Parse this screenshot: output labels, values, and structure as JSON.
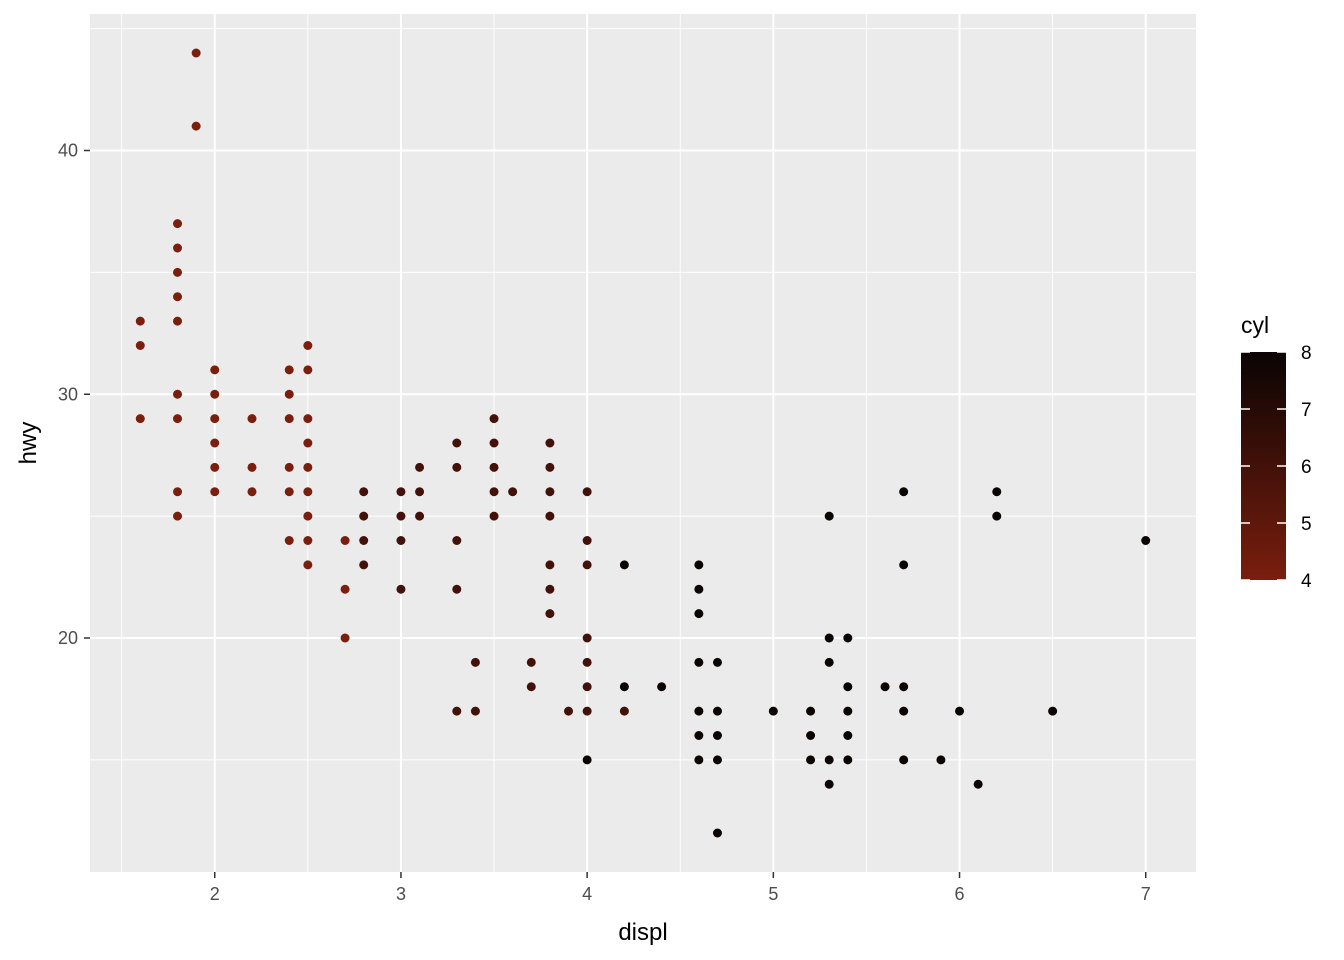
{
  "chart_data": {
    "type": "scatter",
    "title": "",
    "xlabel": "displ",
    "ylabel": "hwy",
    "xlim": [
      1.33,
      7.27
    ],
    "ylim": [
      10.4,
      45.6
    ],
    "x_ticks": [
      2,
      3,
      4,
      5,
      6,
      7
    ],
    "y_ticks": [
      20,
      30,
      40
    ],
    "grid": true,
    "legend": {
      "title": "cyl",
      "type": "colorbar",
      "position": "right",
      "min": 4,
      "max": 8,
      "ticks": [
        4,
        5,
        6,
        7,
        8
      ],
      "low_color": "#7a1e0e",
      "high_color": "#0a0403"
    },
    "colors": {
      "panel_bg": "#ebebeb",
      "grid": "#ffffff"
    },
    "points": [
      {
        "x": 1.6,
        "y": 33,
        "cyl": 4
      },
      {
        "x": 1.6,
        "y": 32,
        "cyl": 4
      },
      {
        "x": 1.6,
        "y": 29,
        "cyl": 4
      },
      {
        "x": 1.8,
        "y": 37,
        "cyl": 4
      },
      {
        "x": 1.8,
        "y": 36,
        "cyl": 4
      },
      {
        "x": 1.8,
        "y": 35,
        "cyl": 4
      },
      {
        "x": 1.8,
        "y": 34,
        "cyl": 4
      },
      {
        "x": 1.8,
        "y": 33,
        "cyl": 4
      },
      {
        "x": 1.8,
        "y": 30,
        "cyl": 4
      },
      {
        "x": 1.8,
        "y": 29,
        "cyl": 4
      },
      {
        "x": 1.8,
        "y": 26,
        "cyl": 4
      },
      {
        "x": 1.8,
        "y": 25,
        "cyl": 4
      },
      {
        "x": 1.9,
        "y": 44,
        "cyl": 4
      },
      {
        "x": 1.9,
        "y": 41,
        "cyl": 4
      },
      {
        "x": 2.0,
        "y": 31,
        "cyl": 4
      },
      {
        "x": 2.0,
        "y": 30,
        "cyl": 4
      },
      {
        "x": 2.0,
        "y": 29,
        "cyl": 4
      },
      {
        "x": 2.0,
        "y": 28,
        "cyl": 4
      },
      {
        "x": 2.0,
        "y": 27,
        "cyl": 4
      },
      {
        "x": 2.0,
        "y": 26,
        "cyl": 4
      },
      {
        "x": 2.2,
        "y": 29,
        "cyl": 4
      },
      {
        "x": 2.2,
        "y": 27,
        "cyl": 4
      },
      {
        "x": 2.2,
        "y": 26,
        "cyl": 4
      },
      {
        "x": 2.4,
        "y": 31,
        "cyl": 4
      },
      {
        "x": 2.4,
        "y": 30,
        "cyl": 4
      },
      {
        "x": 2.4,
        "y": 29,
        "cyl": 4
      },
      {
        "x": 2.4,
        "y": 27,
        "cyl": 4
      },
      {
        "x": 2.4,
        "y": 26,
        "cyl": 4
      },
      {
        "x": 2.4,
        "y": 24,
        "cyl": 4
      },
      {
        "x": 2.5,
        "y": 32,
        "cyl": 4
      },
      {
        "x": 2.5,
        "y": 31,
        "cyl": 4
      },
      {
        "x": 2.5,
        "y": 29,
        "cyl": 4
      },
      {
        "x": 2.5,
        "y": 28,
        "cyl": 4
      },
      {
        "x": 2.5,
        "y": 27,
        "cyl": 4
      },
      {
        "x": 2.5,
        "y": 26,
        "cyl": 4
      },
      {
        "x": 2.5,
        "y": 25,
        "cyl": 4
      },
      {
        "x": 2.5,
        "y": 24,
        "cyl": 4
      },
      {
        "x": 2.5,
        "y": 23,
        "cyl": 4
      },
      {
        "x": 2.7,
        "y": 24,
        "cyl": 4
      },
      {
        "x": 2.7,
        "y": 22,
        "cyl": 4
      },
      {
        "x": 2.7,
        "y": 20,
        "cyl": 4
      },
      {
        "x": 2.8,
        "y": 26,
        "cyl": 6
      },
      {
        "x": 2.8,
        "y": 25,
        "cyl": 6
      },
      {
        "x": 2.8,
        "y": 24,
        "cyl": 6
      },
      {
        "x": 2.8,
        "y": 23,
        "cyl": 6
      },
      {
        "x": 3.0,
        "y": 26,
        "cyl": 6
      },
      {
        "x": 3.0,
        "y": 25,
        "cyl": 6
      },
      {
        "x": 3.0,
        "y": 24,
        "cyl": 6
      },
      {
        "x": 3.0,
        "y": 22,
        "cyl": 6
      },
      {
        "x": 3.1,
        "y": 27,
        "cyl": 6
      },
      {
        "x": 3.1,
        "y": 26,
        "cyl": 6
      },
      {
        "x": 3.1,
        "y": 25,
        "cyl": 6
      },
      {
        "x": 3.3,
        "y": 28,
        "cyl": 6
      },
      {
        "x": 3.3,
        "y": 27,
        "cyl": 6
      },
      {
        "x": 3.3,
        "y": 24,
        "cyl": 6
      },
      {
        "x": 3.3,
        "y": 22,
        "cyl": 6
      },
      {
        "x": 3.3,
        "y": 17,
        "cyl": 6
      },
      {
        "x": 3.4,
        "y": 19,
        "cyl": 6
      },
      {
        "x": 3.4,
        "y": 17,
        "cyl": 6
      },
      {
        "x": 3.5,
        "y": 29,
        "cyl": 6
      },
      {
        "x": 3.5,
        "y": 28,
        "cyl": 6
      },
      {
        "x": 3.5,
        "y": 27,
        "cyl": 6
      },
      {
        "x": 3.5,
        "y": 26,
        "cyl": 6
      },
      {
        "x": 3.5,
        "y": 25,
        "cyl": 6
      },
      {
        "x": 3.6,
        "y": 26,
        "cyl": 6
      },
      {
        "x": 3.7,
        "y": 19,
        "cyl": 6
      },
      {
        "x": 3.7,
        "y": 18,
        "cyl": 6
      },
      {
        "x": 3.8,
        "y": 28,
        "cyl": 6
      },
      {
        "x": 3.8,
        "y": 27,
        "cyl": 6
      },
      {
        "x": 3.8,
        "y": 26,
        "cyl": 6
      },
      {
        "x": 3.8,
        "y": 25,
        "cyl": 6
      },
      {
        "x": 3.8,
        "y": 23,
        "cyl": 6
      },
      {
        "x": 3.8,
        "y": 22,
        "cyl": 6
      },
      {
        "x": 3.8,
        "y": 21,
        "cyl": 6
      },
      {
        "x": 3.9,
        "y": 17,
        "cyl": 6
      },
      {
        "x": 4.0,
        "y": 26,
        "cyl": 6
      },
      {
        "x": 4.0,
        "y": 24,
        "cyl": 6
      },
      {
        "x": 4.0,
        "y": 23,
        "cyl": 6
      },
      {
        "x": 4.0,
        "y": 20,
        "cyl": 6
      },
      {
        "x": 4.0,
        "y": 19,
        "cyl": 6
      },
      {
        "x": 4.0,
        "y": 18,
        "cyl": 6
      },
      {
        "x": 4.0,
        "y": 17,
        "cyl": 6
      },
      {
        "x": 4.0,
        "y": 15,
        "cyl": 8
      },
      {
        "x": 4.2,
        "y": 23,
        "cyl": 8
      },
      {
        "x": 4.2,
        "y": 18,
        "cyl": 8
      },
      {
        "x": 4.2,
        "y": 17,
        "cyl": 6
      },
      {
        "x": 4.4,
        "y": 18,
        "cyl": 8
      },
      {
        "x": 4.6,
        "y": 23,
        "cyl": 8
      },
      {
        "x": 4.6,
        "y": 22,
        "cyl": 8
      },
      {
        "x": 4.6,
        "y": 21,
        "cyl": 8
      },
      {
        "x": 4.6,
        "y": 19,
        "cyl": 8
      },
      {
        "x": 4.6,
        "y": 17,
        "cyl": 8
      },
      {
        "x": 4.6,
        "y": 16,
        "cyl": 8
      },
      {
        "x": 4.6,
        "y": 15,
        "cyl": 8
      },
      {
        "x": 4.7,
        "y": 19,
        "cyl": 8
      },
      {
        "x": 4.7,
        "y": 17,
        "cyl": 8
      },
      {
        "x": 4.7,
        "y": 16,
        "cyl": 8
      },
      {
        "x": 4.7,
        "y": 15,
        "cyl": 8
      },
      {
        "x": 4.7,
        "y": 12,
        "cyl": 8
      },
      {
        "x": 5.0,
        "y": 17,
        "cyl": 8
      },
      {
        "x": 5.2,
        "y": 17,
        "cyl": 8
      },
      {
        "x": 5.2,
        "y": 16,
        "cyl": 8
      },
      {
        "x": 5.2,
        "y": 15,
        "cyl": 8
      },
      {
        "x": 5.3,
        "y": 25,
        "cyl": 8
      },
      {
        "x": 5.3,
        "y": 20,
        "cyl": 8
      },
      {
        "x": 5.3,
        "y": 19,
        "cyl": 8
      },
      {
        "x": 5.3,
        "y": 15,
        "cyl": 8
      },
      {
        "x": 5.3,
        "y": 14,
        "cyl": 8
      },
      {
        "x": 5.4,
        "y": 20,
        "cyl": 8
      },
      {
        "x": 5.4,
        "y": 18,
        "cyl": 8
      },
      {
        "x": 5.4,
        "y": 17,
        "cyl": 8
      },
      {
        "x": 5.4,
        "y": 16,
        "cyl": 8
      },
      {
        "x": 5.4,
        "y": 15,
        "cyl": 8
      },
      {
        "x": 5.6,
        "y": 18,
        "cyl": 8
      },
      {
        "x": 5.7,
        "y": 26,
        "cyl": 8
      },
      {
        "x": 5.7,
        "y": 23,
        "cyl": 8
      },
      {
        "x": 5.7,
        "y": 18,
        "cyl": 8
      },
      {
        "x": 5.7,
        "y": 17,
        "cyl": 8
      },
      {
        "x": 5.7,
        "y": 15,
        "cyl": 8
      },
      {
        "x": 5.9,
        "y": 15,
        "cyl": 8
      },
      {
        "x": 6.0,
        "y": 17,
        "cyl": 8
      },
      {
        "x": 6.1,
        "y": 14,
        "cyl": 8
      },
      {
        "x": 6.2,
        "y": 26,
        "cyl": 8
      },
      {
        "x": 6.2,
        "y": 25,
        "cyl": 8
      },
      {
        "x": 6.5,
        "y": 17,
        "cyl": 8
      },
      {
        "x": 7.0,
        "y": 24,
        "cyl": 8
      }
    ]
  }
}
